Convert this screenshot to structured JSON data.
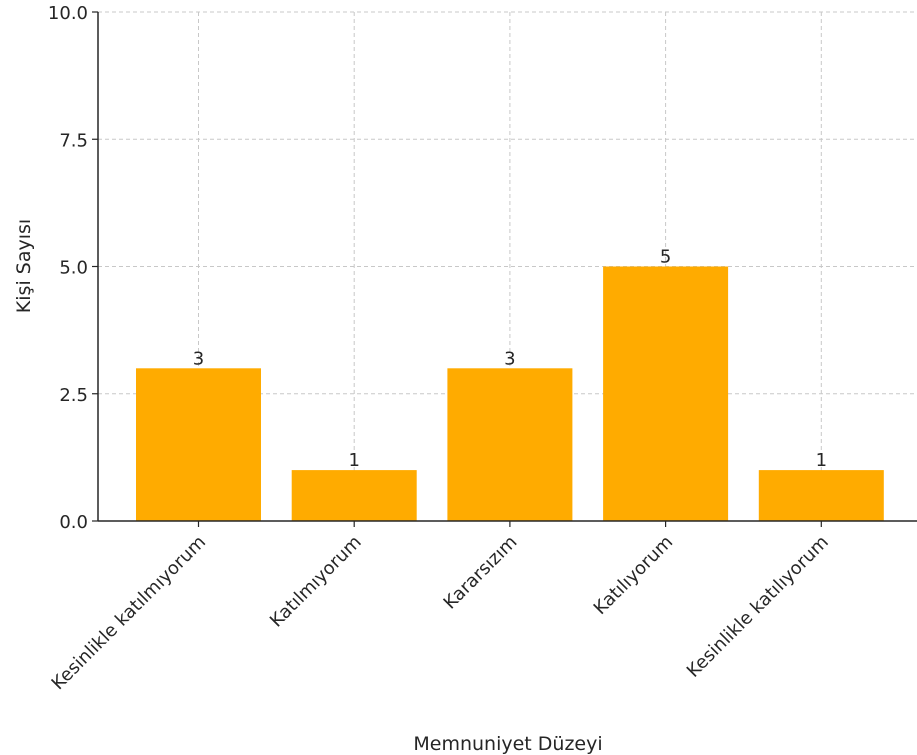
{
  "chart_data": {
    "type": "bar",
    "title": "",
    "xlabel": "Memnuniyet Düzeyi",
    "ylabel": "Kişi Sayısı",
    "categories": [
      "Kesinlikle katılmıyorum",
      "Katılmıyorum",
      "Kararsızım",
      "Katılıyorum",
      "Kesinlikle katılıyorum"
    ],
    "values": [
      3,
      1,
      3,
      5,
      1
    ],
    "ylim": [
      0,
      10
    ],
    "yticks": [
      "0.0",
      "2.5",
      "5.0",
      "7.5",
      "10.0"
    ],
    "grid": true,
    "bar_color": "#FFAB00",
    "show_value_labels": true
  }
}
